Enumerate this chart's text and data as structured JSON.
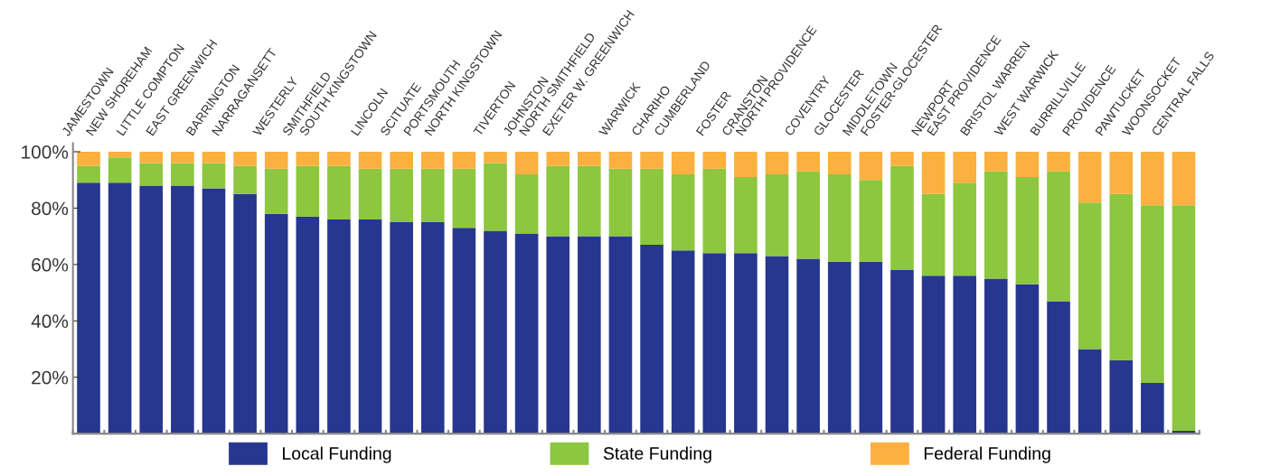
{
  "chart_data": {
    "type": "bar",
    "stacked": true,
    "categories": [
      "JAMESTOWN",
      "NEW SHOREHAM",
      "LITTLE COMPTON",
      "EAST GREENWICH",
      "BARRINGTON",
      "NARRAGANSETT",
      "WESTERLY",
      "SMITHFIELD",
      "SOUTH KINGSTOWN",
      "LINCOLN",
      "SCITUATE",
      "PORTSMOUTH",
      "NORTH KINGSTOWN",
      "TIVERTON",
      "JOHNSTON",
      "NORTH SMITHFIELD",
      "EXETER W. GREENWICH",
      "WARWICK",
      "CHARIHO",
      "CUMBERLAND",
      "FOSTER",
      "CRANSTON",
      "NORTH PROVIDENCE",
      "COVENTRY",
      "GLOCESTER",
      "MIDDLETOWN",
      "FOSTER-GLOCESTER",
      "NEWPORT",
      "EAST PROVIDENCE",
      "BRISTOL WARREN",
      "WEST WARWICK",
      "BURRILLVILLE",
      "PROVIDENCE",
      "PAWTUCKET",
      "WOONSOCKET",
      "CENTRAL FALLS"
    ],
    "series": [
      {
        "name": "Local Funding",
        "color": "#27378f",
        "values": [
          89,
          89,
          88,
          88,
          87,
          85,
          78,
          77,
          76,
          76,
          75,
          75,
          73,
          72,
          71,
          70,
          70,
          70,
          67,
          65,
          64,
          64,
          63,
          62,
          61,
          61,
          58,
          56,
          56,
          55,
          53,
          47,
          30,
          26,
          18,
          1
        ]
      },
      {
        "name": "State Funding",
        "color": "#8dc63f",
        "values": [
          6,
          9,
          8,
          8,
          9,
          10,
          16,
          18,
          19,
          18,
          19,
          19,
          21,
          24,
          21,
          25,
          25,
          24,
          27,
          27,
          30,
          27,
          29,
          31,
          31,
          29,
          37,
          29,
          33,
          38,
          38,
          46,
          52,
          59,
          63,
          80
        ]
      },
      {
        "name": "Federal Funding",
        "color": "#fbb040",
        "values": [
          5,
          2,
          4,
          4,
          4,
          5,
          6,
          5,
          5,
          6,
          6,
          6,
          6,
          4,
          8,
          5,
          5,
          6,
          6,
          8,
          6,
          9,
          8,
          7,
          8,
          10,
          5,
          15,
          11,
          7,
          9,
          7,
          18,
          15,
          19,
          19
        ]
      }
    ],
    "ylim": [
      0,
      103
    ],
    "yticks": [
      {
        "value": 20,
        "label": "20%"
      },
      {
        "value": 40,
        "label": "40%"
      },
      {
        "value": 60,
        "label": "60%"
      },
      {
        "value": 80,
        "label": "80%"
      },
      {
        "value": 100,
        "label": "100%"
      }
    ],
    "grid": false,
    "legend": "bottom"
  }
}
